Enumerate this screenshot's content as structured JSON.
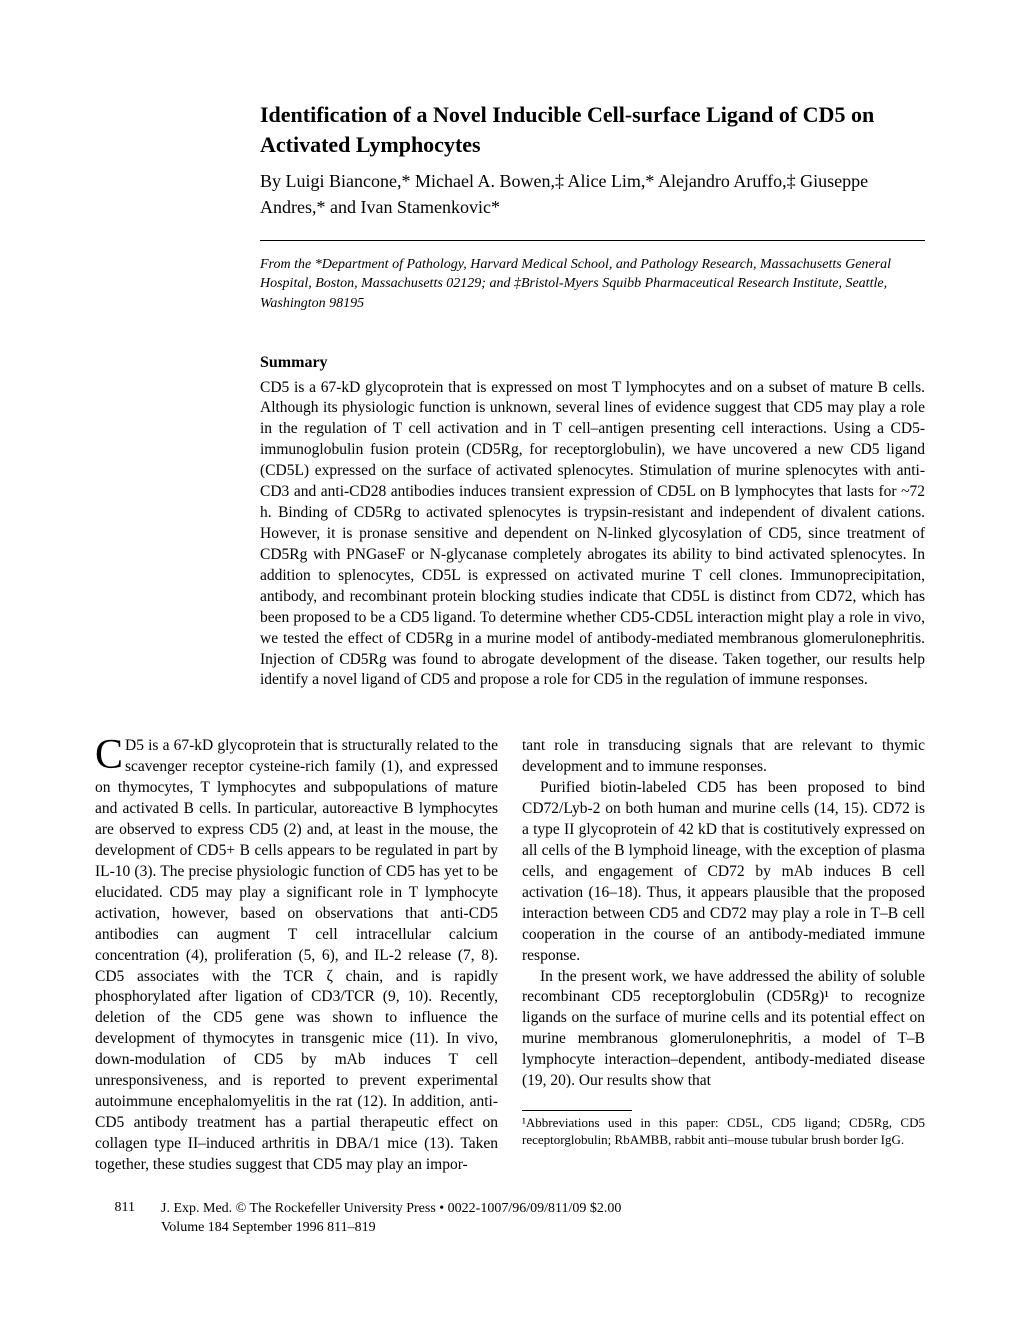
{
  "title": "Identification of a Novel Inducible Cell-surface Ligand of CD5 on Activated Lymphocytes",
  "authors": "By Luigi Biancone,* Michael A. Bowen,‡ Alice Lim,* Alejandro Aruffo,‡ Giuseppe Andres,* and Ivan Stamenkovic*",
  "affiliation": "From the *Department of Pathology, Harvard Medical School, and Pathology Research, Massachusetts General Hospital, Boston, Massachusetts 02129; and ‡Bristol-Myers Squibb Pharmaceutical Research Institute, Seattle, Washington 98195",
  "summary_header": "Summary",
  "summary_body": "CD5 is a 67-kD glycoprotein that is expressed on most T lymphocytes and on a subset of mature B cells. Although its physiologic function is unknown, several lines of evidence suggest that CD5 may play a role in the regulation of T cell activation and in T cell–antigen presenting cell interactions. Using a CD5-immunoglobulin fusion protein (CD5Rg, for receptorglobulin), we have uncovered a new CD5 ligand (CD5L) expressed on the surface of activated splenocytes. Stimulation of murine splenocytes with anti-CD3 and anti-CD28 antibodies induces transient expression of CD5L on B lymphocytes that lasts for ~72 h. Binding of CD5Rg to activated splenocytes is trypsin-resistant and independent of divalent cations. However, it is pronase sensitive and dependent on N-linked glycosylation of CD5, since treatment of CD5Rg with PNGaseF or N-glycanase completely abrogates its ability to bind activated splenocytes. In addition to splenocytes, CD5L is expressed on activated murine T cell clones. Immunoprecipitation, antibody, and recombinant protein blocking studies indicate that CD5L is distinct from CD72, which has been proposed to be a CD5 ligand. To determine whether CD5-CD5L interaction might play a role in vivo, we tested the effect of CD5Rg in a murine model of antibody-mediated membranous glomerulonephritis. Injection of CD5Rg was found to abrogate development of the disease. Taken together, our results help identify a novel ligand of CD5 and propose a role for CD5 in the regulation of immune responses.",
  "col1_p1_first": "D5 is a 67-kD glycoprotein that is structurally related to the scavenger receptor cysteine-rich family (1), and expressed on thymocytes, T lymphocytes and subpopulations of mature and activated B cells. In particular, autoreactive B lymphocytes are observed to express CD5 (2) and, at least in the mouse, the development of CD5+ B cells appears to be regulated in part by IL-10 (3). The precise physiologic function of CD5 has yet to be elucidated. CD5 may play a significant role in T lymphocyte activation, however, based on observations that anti-CD5 antibodies can augment T cell intracellular calcium concentration (4), proliferation (5, 6), and IL-2 release (7, 8). CD5 associates with the TCR ζ chain, and is rapidly phosphorylated after ligation of CD3/TCR (9, 10). Recently, deletion of the CD5 gene was shown to influence the development of thymocytes in transgenic mice (11). In vivo, down-modulation of CD5 by mAb induces T cell unresponsiveness, and is reported to prevent experimental autoimmune encephalomyelitis in the rat (12). In addition, anti-CD5 antibody treatment has a partial therapeutic effect on collagen type II–induced arthritis in DBA/1 mice (13). Taken together, these studies suggest that CD5 may play an impor-",
  "col2_p1": "tant role in transducing signals that are relevant to thymic development and to immune responses.",
  "col2_p2": "Purified biotin-labeled CD5 has been proposed to bind CD72/Lyb-2 on both human and murine cells (14, 15). CD72 is a type II glycoprotein of 42 kD that is costitutively expressed on all cells of the B lymphoid lineage, with the exception of plasma cells, and engagement of CD72 by mAb induces B cell activation (16–18). Thus, it appears plausible that the proposed interaction between CD5 and CD72 may play a role in T–B cell cooperation in the course of an antibody-mediated immune response.",
  "col2_p3": "In the present work, we have addressed the ability of soluble recombinant CD5 receptorglobulin (CD5Rg)¹ to recognize ligands on the surface of murine cells and its potential effect on murine membranous glomerulonephritis, a model of T–B lymphocyte interaction–dependent, antibody-mediated disease (19, 20). Our results show that",
  "footnote": "¹Abbreviations used in this paper: CD5L, CD5 ligand; CD5Rg, CD5 receptorglobulin; RbAMBB, rabbit anti–mouse tubular brush border IgG.",
  "footer_page": "811",
  "footer_line1": "J. Exp. Med. © The Rockefeller University Press • 0022-1007/96/09/811/09 $2.00",
  "footer_line2": "Volume 184 September 1996 811–819"
}
